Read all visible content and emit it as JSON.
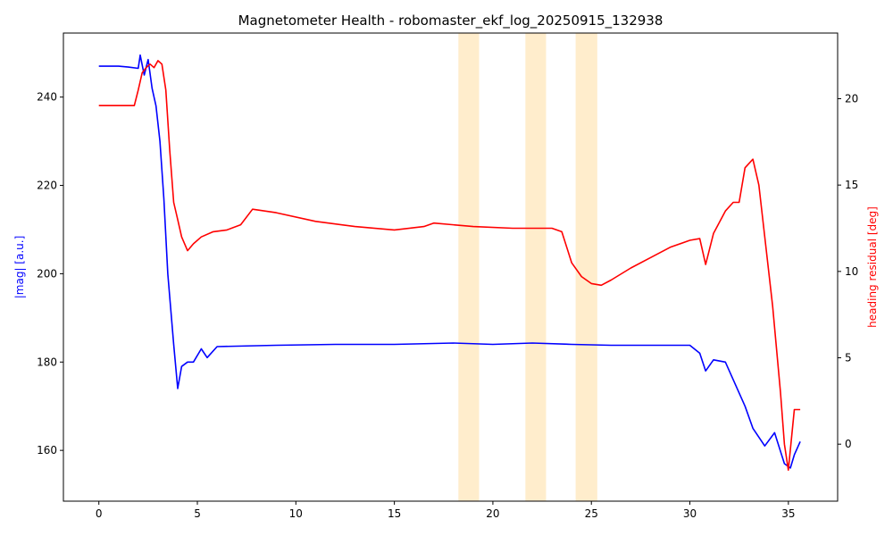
{
  "chart_data": {
    "type": "line",
    "title": "Magnetometer Health - robomaster_ekf_log_20250915_132938",
    "xlabel": "",
    "ylabel_left": "|mag| [a.u.]",
    "ylabel_right": "heading residual [deg]",
    "xlim": [
      -1.8,
      37.5
    ],
    "ylim_left": [
      148.5,
      254.5
    ],
    "ylim_right": [
      -3.3,
      23.8
    ],
    "x_ticks": [
      0,
      5,
      10,
      15,
      20,
      25,
      30,
      35
    ],
    "y_ticks_left": [
      160,
      180,
      200,
      220,
      240
    ],
    "y_ticks_right": [
      0,
      5,
      10,
      15,
      20
    ],
    "grid": false,
    "colors": {
      "left_series": "#0000ff",
      "right_series": "#ff0000",
      "highlight": "#ffa500"
    },
    "highlight_spans": [
      {
        "x0": 18.25,
        "x1": 19.3
      },
      {
        "x0": 21.65,
        "x1": 22.7
      },
      {
        "x0": 24.2,
        "x1": 25.3
      }
    ],
    "series": [
      {
        "axis": "left",
        "color": "#0000ff",
        "x": [
          0,
          1,
          1.5,
          2,
          2.1,
          2.3,
          2.5,
          2.7,
          2.9,
          3.1,
          3.3,
          3.5,
          3.8,
          4.0,
          4.2,
          4.5,
          4.8,
          5.2,
          5.5,
          6,
          7,
          9,
          12,
          15,
          18,
          20,
          22,
          24,
          26,
          28,
          30,
          30.5,
          30.8,
          31.2,
          31.8,
          32.2,
          32.8,
          33.2,
          33.8,
          34.3,
          34.8,
          35.1,
          35.3,
          35.6
        ],
        "y": [
          247,
          247,
          246.8,
          246.5,
          249.5,
          245,
          248.5,
          242,
          238,
          230,
          217,
          200,
          184,
          174,
          179,
          180,
          180,
          183,
          181,
          183.5,
          183.6,
          183.8,
          184,
          184,
          184.3,
          184,
          184.3,
          184,
          183.8,
          183.8,
          183.8,
          182,
          178,
          180.5,
          180,
          176,
          170,
          165,
          161,
          164,
          157,
          156,
          159,
          162
        ]
      },
      {
        "axis": "right",
        "color": "#ff0000",
        "x": [
          0,
          1,
          1.8,
          2.0,
          2.2,
          2.4,
          2.6,
          2.8,
          3.0,
          3.2,
          3.4,
          3.6,
          3.8,
          4.0,
          4.2,
          4.5,
          4.8,
          5.2,
          5.8,
          6.5,
          7.2,
          7.8,
          9,
          11,
          13,
          15,
          16.5,
          17,
          19,
          21,
          23,
          23.5,
          24.0,
          24.5,
          25.0,
          25.5,
          26,
          27,
          28,
          29,
          30,
          30.5,
          30.8,
          31.2,
          31.8,
          32.2,
          32.5,
          32.8,
          33.2,
          33.5,
          33.8,
          34.2,
          34.6,
          34.8,
          35.0,
          35.3,
          35.6
        ],
        "y": [
          19.6,
          19.6,
          19.6,
          20.5,
          21.5,
          21.8,
          22,
          21.8,
          22.2,
          22,
          20.5,
          17,
          14,
          13,
          12,
          11.2,
          11.6,
          12,
          12.3,
          12.4,
          12.7,
          13.6,
          13.4,
          12.9,
          12.6,
          12.4,
          12.6,
          12.8,
          12.6,
          12.5,
          12.5,
          12.3,
          10.5,
          9.7,
          9.3,
          9.2,
          9.5,
          10.2,
          10.8,
          11.4,
          11.8,
          11.9,
          10.4,
          12.2,
          13.5,
          14,
          14,
          16,
          16.5,
          15,
          12,
          8,
          3,
          0,
          -1.5,
          2,
          2
        ]
      }
    ]
  }
}
